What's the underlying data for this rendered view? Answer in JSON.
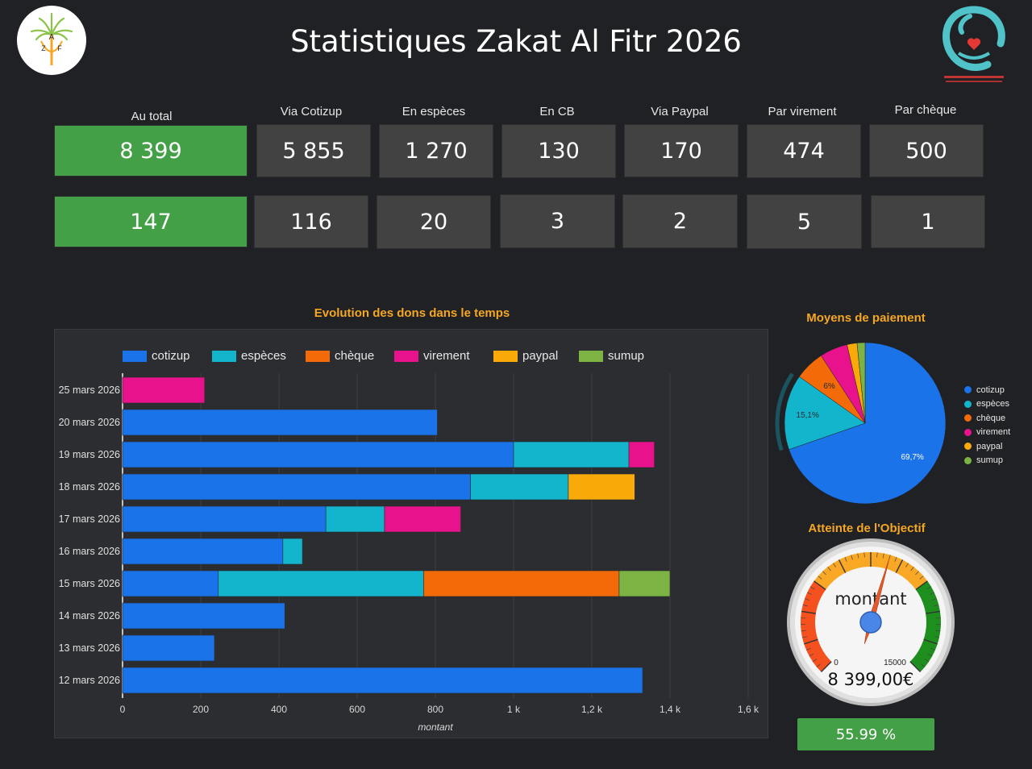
{
  "header": {
    "title": "Statistiques Zakat Al Fitr 2026",
    "logo_left_letters": [
      "A",
      "Z",
      "F"
    ]
  },
  "kpis": {
    "headers": [
      "Au total",
      "Via Cotizup",
      "En espèces",
      "En CB",
      "Via Paypal",
      "Par virement",
      "Par chèque"
    ],
    "amounts": [
      "8 399",
      "5 855",
      "1 270",
      "130",
      "170",
      "474",
      "500"
    ],
    "counts": [
      "147",
      "116",
      "20",
      "3",
      "2",
      "5",
      "1"
    ]
  },
  "colors": {
    "cotizup": "#1a73e8",
    "especes": "#12b5cb",
    "cheque": "#f36a08",
    "virement": "#e8128c",
    "paypal": "#f9a908",
    "sumup": "#7cb342",
    "accent_title": "#f5a623",
    "kpi_green": "#43a047"
  },
  "chart_data": [
    {
      "type": "bar",
      "orientation": "horizontal",
      "stacked": true,
      "title": "Evolution des dons dans le temps",
      "xlabel": "montant",
      "ylabel": "",
      "xlim": [
        0,
        1650
      ],
      "x_ticks": [
        "0",
        "200",
        "400",
        "600",
        "800",
        "1 k",
        "1,2 k",
        "1,4 k",
        "1,6 k"
      ],
      "x_tick_values": [
        0,
        200,
        400,
        600,
        800,
        1000,
        1200,
        1400,
        1600
      ],
      "grid": true,
      "legend_position": "top",
      "categories": [
        "25 mars 2026",
        "20 mars 2026",
        "19 mars 2026",
        "18 mars 2026",
        "17 mars 2026",
        "16 mars 2026",
        "15 mars 2026",
        "14 mars 2026",
        "13 mars 2026",
        "12 mars 2026"
      ],
      "series": [
        {
          "name": "cotizup",
          "values": [
            0,
            805,
            1000,
            890,
            520,
            410,
            245,
            415,
            235,
            1330
          ]
        },
        {
          "name": "espèces",
          "values": [
            0,
            0,
            295,
            250,
            150,
            50,
            525,
            0,
            0,
            0
          ]
        },
        {
          "name": "chèque",
          "values": [
            0,
            0,
            0,
            0,
            0,
            0,
            500,
            0,
            0,
            0
          ]
        },
        {
          "name": "virement",
          "values": [
            210,
            0,
            65,
            0,
            195,
            0,
            0,
            0,
            0,
            0
          ]
        },
        {
          "name": "paypal",
          "values": [
            0,
            0,
            0,
            170,
            0,
            0,
            0,
            0,
            0,
            0
          ]
        },
        {
          "name": "sumup",
          "values": [
            0,
            0,
            0,
            0,
            0,
            0,
            130,
            0,
            0,
            0
          ]
        }
      ]
    },
    {
      "type": "pie",
      "title": "Moyens de paiement",
      "legend_position": "right",
      "labels": [
        "cotizup",
        "espèces",
        "chèque",
        "virement",
        "paypal",
        "sumup"
      ],
      "values": [
        69.7,
        15.1,
        6.0,
        5.6,
        2.0,
        1.6
      ],
      "shown_labels": [
        "69,7%",
        "15,1%",
        "6%",
        "",
        "",
        ""
      ]
    },
    {
      "type": "gauge",
      "title": "Atteinte de l'Objectif",
      "label": "montant",
      "min": 0,
      "max": 15000,
      "min_label": "0",
      "max_label": "15000",
      "value": 8399,
      "value_label": "8 399,00€",
      "bands": [
        {
          "from": 0,
          "to": 4500,
          "color": "#f4511e"
        },
        {
          "from": 4500,
          "to": 10500,
          "color": "#f9a825"
        },
        {
          "from": 10500,
          "to": 15000,
          "color": "#1e8e1e"
        }
      ]
    }
  ],
  "progress": {
    "percent": 55.99,
    "label": "55.99 %"
  }
}
